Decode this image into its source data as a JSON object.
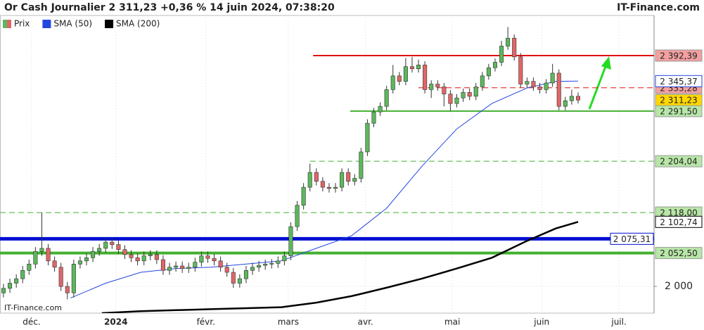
{
  "header": {
    "title": "Or Cash Journalier 2 311,23 +0,36 % 14 juin 2024, 07:38:20",
    "brand": "IT-Finance.com"
  },
  "chart_data": {
    "type": "candlestick",
    "watermark": "IT-Finance.com",
    "log_scale": true,
    "grid": true,
    "ylim": [
      1959,
      2468
    ],
    "yticks": [
      {
        "value": 2000,
        "label": "2 000"
      }
    ],
    "xlim": [
      -0.55,
      101.9
    ],
    "xticks": [
      {
        "value": 4.4,
        "label": "déc."
      },
      {
        "value": 17.6,
        "label": "2024"
      },
      {
        "value": 31.7,
        "label": "févr."
      },
      {
        "value": 44.6,
        "label": "mars"
      },
      {
        "value": 56.7,
        "label": "avr."
      },
      {
        "value": 70.3,
        "label": "mai"
      },
      {
        "value": 84.3,
        "label": "juin"
      },
      {
        "value": 96.4,
        "label": "juil."
      }
    ],
    "candles": {
      "name": "Prix",
      "up_color": "#5cb85c",
      "down_color": "#e06666",
      "last_label": "2 311,23",
      "label_color": "#ffd700",
      "open": [
        1990,
        1997,
        2005,
        2012,
        2025,
        2035,
        2055,
        2060,
        2040,
        2030,
        2000,
        1990,
        2035,
        2040,
        2045,
        2055,
        2060,
        2070,
        2066,
        2058,
        2050,
        2045,
        2040,
        2048,
        2050,
        2042,
        2025,
        2030,
        2032,
        2028,
        2030,
        2038,
        2048,
        2044,
        2040,
        2030,
        2022,
        2005,
        2012,
        2025,
        2030,
        2033,
        2035,
        2036,
        2040,
        2048,
        2095,
        2130,
        2160,
        2185,
        2170,
        2160,
        2158,
        2160,
        2185,
        2170,
        2175,
        2220,
        2270,
        2290,
        2300,
        2330,
        2355,
        2345,
        2372,
        2368,
        2375,
        2330,
        2340,
        2335,
        2322,
        2305,
        2315,
        2325,
        2318,
        2335,
        2355,
        2370,
        2380,
        2410,
        2425,
        2390,
        2340,
        2345,
        2335,
        2330,
        2342,
        2360,
        2300,
        2310,
        2318
      ],
      "high": [
        2004,
        2012,
        2019,
        2032,
        2042,
        2062,
        2118,
        2067,
        2047,
        2037,
        2007,
        2042,
        2047,
        2052,
        2062,
        2067,
        2077,
        2077,
        2073,
        2065,
        2057,
        2052,
        2055,
        2057,
        2057,
        2049,
        2037,
        2039,
        2039,
        2037,
        2045,
        2055,
        2055,
        2051,
        2047,
        2037,
        2029,
        2019,
        2032,
        2037,
        2040,
        2042,
        2043,
        2047,
        2055,
        2102,
        2137,
        2167,
        2200,
        2192,
        2177,
        2167,
        2167,
        2192,
        2192,
        2182,
        2227,
        2277,
        2297,
        2307,
        2337,
        2375,
        2362,
        2388,
        2390,
        2385,
        2382,
        2347,
        2347,
        2342,
        2329,
        2322,
        2332,
        2332,
        2342,
        2362,
        2377,
        2387,
        2420,
        2446,
        2432,
        2397,
        2352,
        2352,
        2342,
        2349,
        2377,
        2367,
        2317,
        2330,
        2325
      ],
      "low": [
        1983,
        1990,
        1998,
        2005,
        2018,
        2028,
        2048,
        2033,
        2023,
        1993,
        1980,
        1983,
        2028,
        2033,
        2038,
        2048,
        2053,
        2059,
        2051,
        2043,
        2038,
        2033,
        2033,
        2041,
        2035,
        2018,
        2018,
        2023,
        2021,
        2021,
        2023,
        2031,
        2037,
        2033,
        2023,
        2015,
        1998,
        1998,
        2005,
        2018,
        2023,
        2026,
        2028,
        2029,
        2033,
        2041,
        2088,
        2123,
        2153,
        2163,
        2153,
        2151,
        2151,
        2153,
        2163,
        2163,
        2168,
        2213,
        2263,
        2283,
        2293,
        2323,
        2338,
        2338,
        2361,
        2361,
        2323,
        2315,
        2328,
        2300,
        2292,
        2298,
        2308,
        2311,
        2311,
        2328,
        2348,
        2363,
        2373,
        2403,
        2383,
        2333,
        2333,
        2328,
        2323,
        2323,
        2335,
        2293,
        2293,
        2303,
        2305
      ],
      "close": [
        1997,
        2005,
        2012,
        2025,
        2035,
        2055,
        2060,
        2040,
        2030,
        2000,
        1990,
        2035,
        2040,
        2045,
        2055,
        2060,
        2070,
        2066,
        2058,
        2050,
        2045,
        2040,
        2048,
        2050,
        2042,
        2025,
        2030,
        2032,
        2028,
        2030,
        2038,
        2048,
        2044,
        2040,
        2030,
        2022,
        2005,
        2012,
        2025,
        2030,
        2033,
        2035,
        2036,
        2040,
        2048,
        2095,
        2130,
        2160,
        2185,
        2170,
        2160,
        2158,
        2160,
        2185,
        2170,
        2175,
        2220,
        2270,
        2290,
        2300,
        2330,
        2355,
        2345,
        2372,
        2368,
        2375,
        2330,
        2340,
        2335,
        2322,
        2305,
        2315,
        2325,
        2318,
        2335,
        2355,
        2370,
        2380,
        2410,
        2425,
        2390,
        2340,
        2345,
        2335,
        2330,
        2342,
        2360,
        2300,
        2310,
        2318,
        2311.23
      ]
    },
    "series": [
      {
        "name": "SMA (50)",
        "color": "#2446e0",
        "last_label": "2 345,37",
        "x": [
          10.5,
          16,
          21.5,
          27,
          32.5,
          38,
          43.5,
          49,
          54.5,
          60,
          65.5,
          71,
          76.5,
          82,
          86.5,
          90
        ],
        "values": [
          1982,
          2005,
          2022,
          2028,
          2030,
          2035,
          2040,
          2060,
          2080,
          2125,
          2195,
          2260,
          2305,
          2333,
          2345,
          2345.37
        ]
      },
      {
        "name": "SMA (200)",
        "color": "#000000",
        "last_label": "2 102,74",
        "x": [
          15.4,
          21.5,
          32.5,
          43.5,
          49,
          54.5,
          60,
          65.5,
          71,
          76.5,
          82,
          86.5,
          90
        ],
        "values": [
          1959,
          1962,
          1965,
          1968,
          1975,
          1985,
          1998,
          2012,
          2028,
          2045,
          2072,
          2092,
          2102.74
        ]
      }
    ],
    "levels": [
      {
        "value": 2392.39,
        "label": "2 392,39",
        "color": "#e01010",
        "style": "solid",
        "width": 2,
        "from": 48.5,
        "label_bg": "#f2a0a0"
      },
      {
        "value": 2333.28,
        "label": "2 333,28",
        "color": "#e01010",
        "style": "dashed",
        "width": 1,
        "from": 65,
        "label_bg": "#f2a0a0"
      },
      {
        "value": 2291.5,
        "label": "2 291,50",
        "color": "#44b030",
        "style": "solid",
        "width": 2,
        "from": 54.3,
        "label_bg": "#b8e6a8"
      },
      {
        "value": 2204.04,
        "label": "2 204,04",
        "color": "#44b030",
        "style": "dashed",
        "width": 1,
        "from": 48,
        "label_bg": "#b8e6a8"
      },
      {
        "value": 2118,
        "label": "2 118,00",
        "color": "#44b030",
        "style": "dashed",
        "width": 1,
        "from": -0.55,
        "label_bg": "#b8e6a8"
      },
      {
        "value": 2075.31,
        "label": "2 075,31",
        "color": "#0010d0",
        "style": "solid",
        "width": 5,
        "from": -0.55,
        "label_bg": "#ffffff",
        "label_inside": true
      },
      {
        "value": 2052.5,
        "label": "2 052,50",
        "color": "#44b030",
        "style": "solid",
        "width": 4,
        "from": -0.55,
        "label_bg": "#b8e6a8"
      }
    ]
  }
}
